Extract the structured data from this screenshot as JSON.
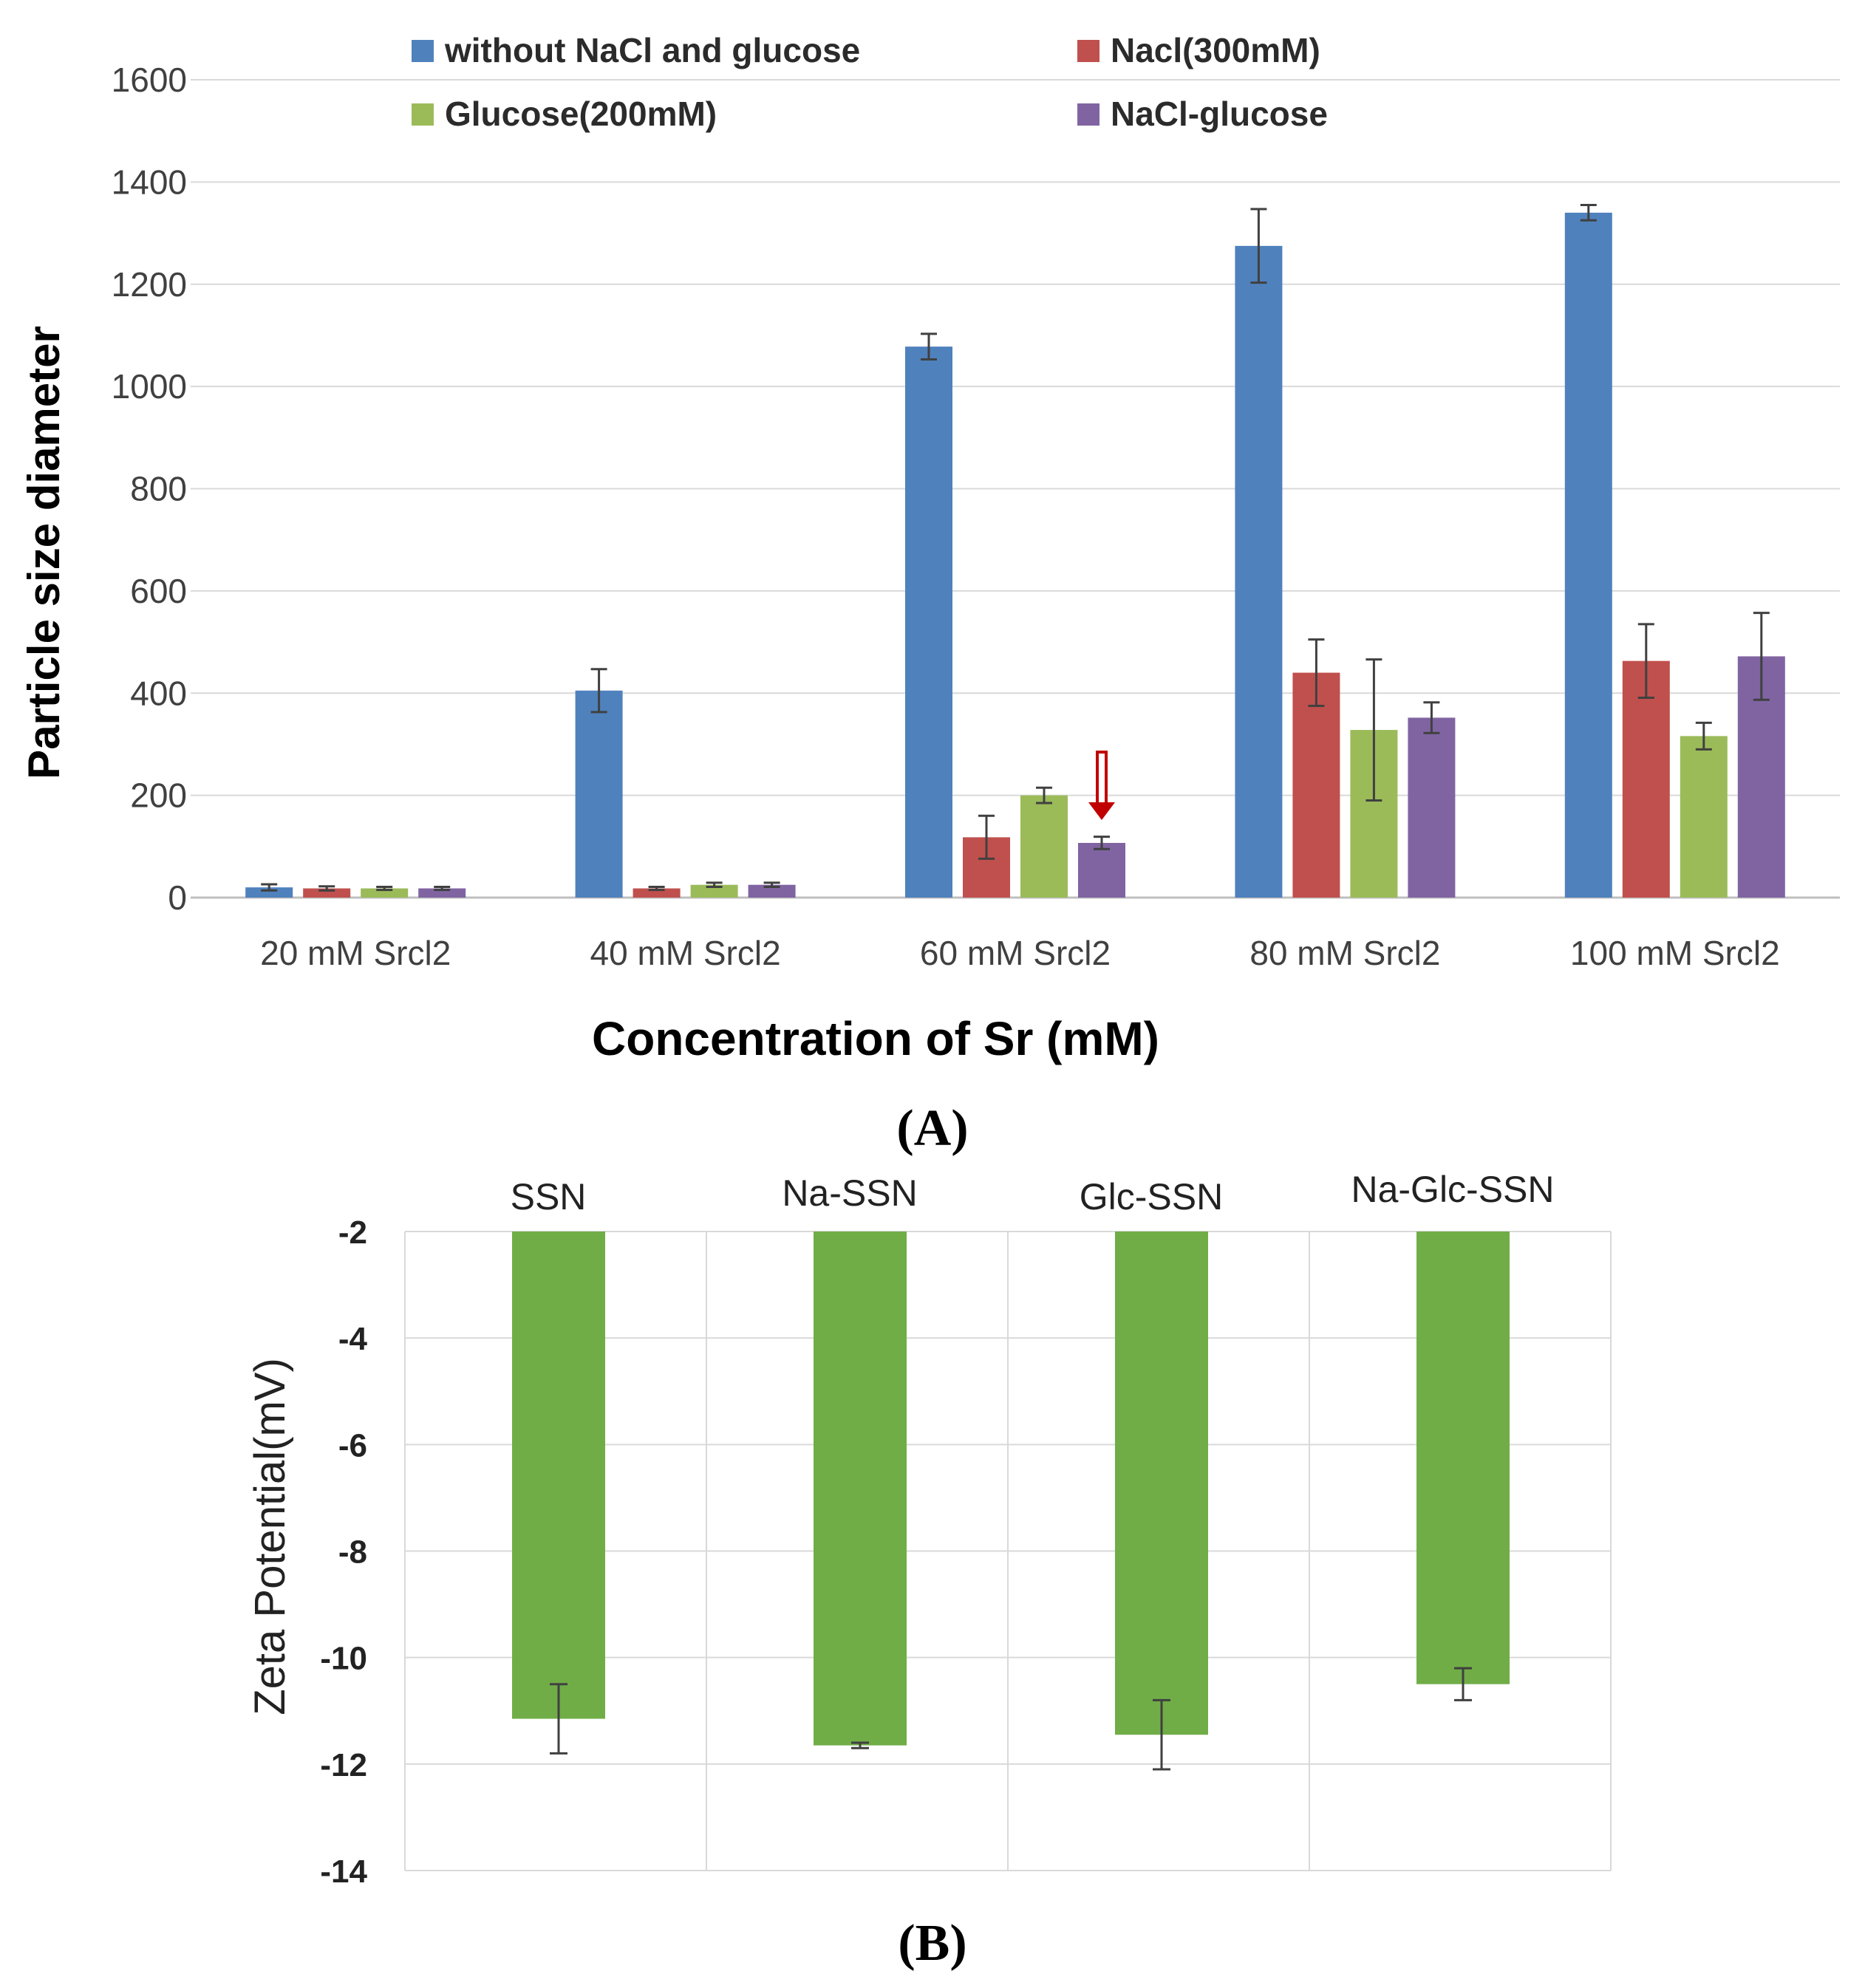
{
  "chart_data": [
    {
      "panel": "(A)",
      "type": "bar",
      "categories": [
        "20 mM Srcl2",
        "40 mM Srcl2",
        "60 mM Srcl2",
        "80 mM Srcl2",
        "100 mM Srcl2"
      ],
      "series": [
        {
          "name": "without NaCl and glucose",
          "color": "#4f81bd",
          "values": [
            20,
            405,
            1078,
            1275,
            1340
          ],
          "errors": [
            6,
            42,
            25,
            72,
            15
          ]
        },
        {
          "name": "Nacl(300mM)",
          "color": "#c0504d",
          "values": [
            18,
            18,
            118,
            440,
            463
          ],
          "errors": [
            4,
            3,
            42,
            65,
            72
          ]
        },
        {
          "name": "Glucose(200mM)",
          "color": "#9bbb59",
          "values": [
            18,
            25,
            200,
            328,
            316
          ],
          "errors": [
            3,
            4,
            15,
            138,
            26
          ]
        },
        {
          "name": "NaCl-glucose",
          "color": "#8064a2",
          "values": [
            18,
            25,
            107,
            352,
            472
          ],
          "errors": [
            3,
            4,
            12,
            30,
            85
          ]
        }
      ],
      "xlabel": "Concentration of Sr (mM)",
      "ylabel": "Particle size diameter",
      "ylim": [
        0,
        1600
      ],
      "yticks": [
        "0",
        "200",
        "400",
        "600",
        "800",
        "1000",
        "1200",
        "1400",
        "1600"
      ],
      "annotation": {
        "type": "arrow",
        "category": "60 mM Srcl2",
        "series": "NaCl-glucose",
        "color": "#c00000"
      },
      "grid": true,
      "legend": "top"
    },
    {
      "panel": "(B)",
      "type": "bar",
      "categories": [
        "SSN",
        "Na-SSN",
        "Glc-SSN",
        "Na-Glc-SSN"
      ],
      "series": [
        {
          "name": "Zeta Potential",
          "color": "#70ad47",
          "values": [
            -11.15,
            -11.65,
            -11.45,
            -10.5
          ],
          "errors": [
            0.65,
            0.05,
            0.65,
            0.3
          ]
        }
      ],
      "ylabel": "Zeta Potential(mV)",
      "ylim": [
        -14,
        -2
      ],
      "yticks": [
        "-2",
        "-4",
        "-6",
        "-8",
        "-10",
        "-12",
        "-14"
      ],
      "xaxis_position": "top",
      "grid": true
    }
  ]
}
